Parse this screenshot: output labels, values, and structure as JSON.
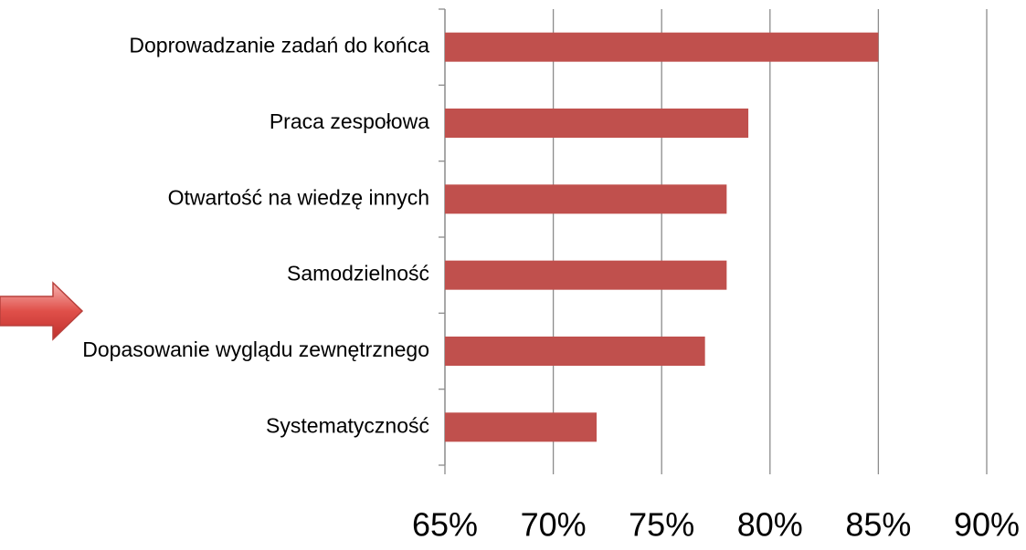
{
  "chart_data": {
    "type": "bar",
    "orientation": "horizontal",
    "categories": [
      "Doprowadzanie zadań do końca",
      "Praca zespołowa",
      "Otwartość na wiedzę innych",
      "Samodzielność",
      "Dopasowanie wyglądu zewnętrznego",
      "Systematyczność"
    ],
    "values": [
      85,
      79,
      78,
      78,
      77,
      72
    ],
    "color": "#c0504d",
    "xlim": [
      65,
      90
    ],
    "xticks": [
      {
        "value": 65,
        "label": "65%"
      },
      {
        "value": 70,
        "label": "70%"
      },
      {
        "value": 75,
        "label": "75%"
      },
      {
        "value": 80,
        "label": "80%"
      },
      {
        "value": 85,
        "label": "85%"
      },
      {
        "value": 90,
        "label": "90%"
      }
    ],
    "grid": true
  }
}
